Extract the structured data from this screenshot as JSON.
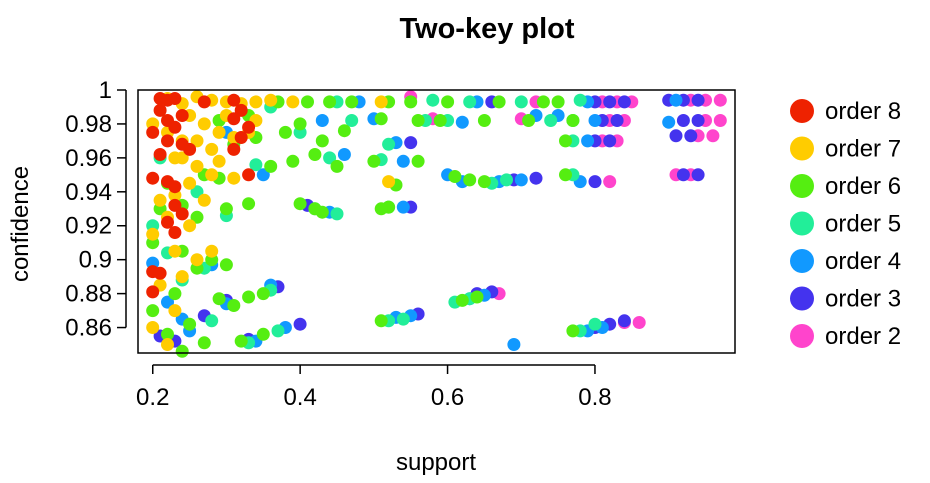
{
  "chart_data": {
    "type": "scatter",
    "title": "Two-key plot",
    "xlabel": "support",
    "ylabel": "confidence",
    "xlim": [
      0.18,
      0.99
    ],
    "ylim": [
      0.845,
      1.0
    ],
    "x_ticks": [
      {
        "value": 0.2,
        "label": "0.2"
      },
      {
        "value": 0.4,
        "label": "0.4"
      },
      {
        "value": 0.6,
        "label": "0.6"
      },
      {
        "value": 0.8,
        "label": "0.8"
      }
    ],
    "y_ticks": [
      {
        "value": 0.86,
        "label": "0.86"
      },
      {
        "value": 0.88,
        "label": "0.88"
      },
      {
        "value": 0.9,
        "label": "0.9"
      },
      {
        "value": 0.92,
        "label": "0.92"
      },
      {
        "value": 0.94,
        "label": "0.94"
      },
      {
        "value": 0.96,
        "label": "0.96"
      },
      {
        "value": 0.98,
        "label": "0.98"
      },
      {
        "value": 1.0,
        "label": "1"
      }
    ],
    "grid": false,
    "legend_position": "right",
    "series": [
      {
        "name": "order 2",
        "color": "#ff44cc",
        "points": [
          [
            0.97,
            0.994
          ],
          [
            0.95,
            0.994
          ],
          [
            0.93,
            0.994
          ],
          [
            0.97,
            0.982
          ],
          [
            0.95,
            0.982
          ],
          [
            0.96,
            0.973
          ],
          [
            0.94,
            0.973
          ],
          [
            0.93,
            0.95
          ],
          [
            0.91,
            0.95
          ],
          [
            0.85,
            0.993
          ],
          [
            0.83,
            0.993
          ],
          [
            0.81,
            0.993
          ],
          [
            0.84,
            0.982
          ],
          [
            0.82,
            0.982
          ],
          [
            0.83,
            0.97
          ],
          [
            0.81,
            0.97
          ],
          [
            0.82,
            0.946
          ],
          [
            0.86,
            0.863
          ],
          [
            0.84,
            0.863
          ],
          [
            0.67,
            0.88
          ],
          [
            0.7,
            0.983
          ],
          [
            0.72,
            0.993
          ],
          [
            0.55,
            0.996
          ],
          [
            0.58,
            0.983
          ]
        ]
      },
      {
        "name": "order 3",
        "color": "#4433ee",
        "points": [
          [
            0.94,
            0.994
          ],
          [
            0.92,
            0.994
          ],
          [
            0.9,
            0.994
          ],
          [
            0.94,
            0.982
          ],
          [
            0.92,
            0.982
          ],
          [
            0.93,
            0.973
          ],
          [
            0.91,
            0.973
          ],
          [
            0.94,
            0.95
          ],
          [
            0.92,
            0.95
          ],
          [
            0.84,
            0.993
          ],
          [
            0.82,
            0.993
          ],
          [
            0.8,
            0.993
          ],
          [
            0.83,
            0.982
          ],
          [
            0.81,
            0.982
          ],
          [
            0.82,
            0.97
          ],
          [
            0.8,
            0.97
          ],
          [
            0.8,
            0.946
          ],
          [
            0.84,
            0.864
          ],
          [
            0.82,
            0.862
          ],
          [
            0.8,
            0.86
          ],
          [
            0.69,
            0.947
          ],
          [
            0.72,
            0.948
          ],
          [
            0.66,
            0.881
          ],
          [
            0.64,
            0.88
          ],
          [
            0.66,
            0.993
          ],
          [
            0.55,
            0.969
          ],
          [
            0.37,
            0.884
          ],
          [
            0.33,
            0.853
          ],
          [
            0.4,
            0.862
          ],
          [
            0.27,
            0.867
          ],
          [
            0.41,
            0.932
          ],
          [
            0.21,
            0.855
          ],
          [
            0.23,
            0.852
          ],
          [
            0.3,
            0.876
          ],
          [
            0.56,
            0.868
          ],
          [
            0.55,
            0.931
          ]
        ]
      },
      {
        "name": "order 4",
        "color": "#1199ff",
        "points": [
          [
            0.69,
            0.85
          ],
          [
            0.91,
            0.994
          ],
          [
            0.9,
            0.981
          ],
          [
            0.79,
            0.993
          ],
          [
            0.8,
            0.982
          ],
          [
            0.79,
            0.97
          ],
          [
            0.78,
            0.946
          ],
          [
            0.81,
            0.86
          ],
          [
            0.79,
            0.858
          ],
          [
            0.65,
            0.879
          ],
          [
            0.63,
            0.877
          ],
          [
            0.7,
            0.947
          ],
          [
            0.67,
            0.946
          ],
          [
            0.64,
            0.993
          ],
          [
            0.62,
            0.981
          ],
          [
            0.53,
            0.866
          ],
          [
            0.55,
            0.867
          ],
          [
            0.54,
            0.931
          ],
          [
            0.53,
            0.969
          ],
          [
            0.54,
            0.958
          ],
          [
            0.2,
            0.898
          ],
          [
            0.24,
            0.865
          ],
          [
            0.3,
            0.874
          ],
          [
            0.36,
            0.885
          ],
          [
            0.34,
            0.852
          ],
          [
            0.38,
            0.86
          ],
          [
            0.44,
            0.928
          ],
          [
            0.48,
            0.993
          ],
          [
            0.5,
            0.983
          ],
          [
            0.46,
            0.962
          ],
          [
            0.28,
            0.897
          ],
          [
            0.22,
            0.875
          ],
          [
            0.25,
            0.858
          ],
          [
            0.43,
            0.982
          ],
          [
            0.35,
            0.95
          ],
          [
            0.3,
            0.975
          ],
          [
            0.6,
            0.95
          ],
          [
            0.62,
            0.946
          ],
          [
            0.75,
            0.985
          ],
          [
            0.72,
            0.985
          ]
        ]
      },
      {
        "name": "order 5",
        "color": "#22ee99",
        "points": [
          [
            0.78,
            0.994
          ],
          [
            0.77,
            0.982
          ],
          [
            0.77,
            0.97
          ],
          [
            0.77,
            0.95
          ],
          [
            0.78,
            0.858
          ],
          [
            0.8,
            0.862
          ],
          [
            0.63,
            0.877
          ],
          [
            0.61,
            0.875
          ],
          [
            0.68,
            0.947
          ],
          [
            0.66,
            0.945
          ],
          [
            0.63,
            0.993
          ],
          [
            0.6,
            0.982
          ],
          [
            0.52,
            0.864
          ],
          [
            0.54,
            0.865
          ],
          [
            0.52,
            0.931
          ],
          [
            0.51,
            0.959
          ],
          [
            0.52,
            0.968
          ],
          [
            0.45,
            0.927
          ],
          [
            0.42,
            0.93
          ],
          [
            0.36,
            0.882
          ],
          [
            0.33,
            0.851
          ],
          [
            0.37,
            0.858
          ],
          [
            0.27,
            0.895
          ],
          [
            0.24,
            0.888
          ],
          [
            0.28,
            0.864
          ],
          [
            0.2,
            0.92
          ],
          [
            0.22,
            0.904
          ],
          [
            0.21,
            0.96
          ],
          [
            0.45,
            0.993
          ],
          [
            0.47,
            0.982
          ],
          [
            0.44,
            0.96
          ],
          [
            0.3,
            0.926
          ],
          [
            0.34,
            0.956
          ],
          [
            0.26,
            0.94
          ],
          [
            0.7,
            0.993
          ],
          [
            0.74,
            0.982
          ],
          [
            0.58,
            0.994
          ],
          [
            0.57,
            0.982
          ],
          [
            0.4,
            0.975
          ],
          [
            0.36,
            0.99
          ]
        ]
      },
      {
        "name": "order 6",
        "color": "#55ee11",
        "points": [
          [
            0.77,
            0.982
          ],
          [
            0.76,
            0.97
          ],
          [
            0.76,
            0.95
          ],
          [
            0.77,
            0.858
          ],
          [
            0.62,
            0.876
          ],
          [
            0.64,
            0.878
          ],
          [
            0.65,
            0.946
          ],
          [
            0.63,
            0.947
          ],
          [
            0.61,
            0.949
          ],
          [
            0.6,
            0.993
          ],
          [
            0.59,
            0.982
          ],
          [
            0.52,
            0.931
          ],
          [
            0.51,
            0.93
          ],
          [
            0.5,
            0.958
          ],
          [
            0.51,
            0.864
          ],
          [
            0.51,
            0.983
          ],
          [
            0.52,
            0.993
          ],
          [
            0.55,
            0.993
          ],
          [
            0.56,
            0.982
          ],
          [
            0.42,
            0.93
          ],
          [
            0.4,
            0.933
          ],
          [
            0.43,
            0.928
          ],
          [
            0.35,
            0.88
          ],
          [
            0.33,
            0.878
          ],
          [
            0.31,
            0.873
          ],
          [
            0.32,
            0.852
          ],
          [
            0.35,
            0.856
          ],
          [
            0.26,
            0.895
          ],
          [
            0.28,
            0.9
          ],
          [
            0.23,
            0.88
          ],
          [
            0.25,
            0.862
          ],
          [
            0.27,
            0.851
          ],
          [
            0.22,
            0.856
          ],
          [
            0.2,
            0.87
          ],
          [
            0.21,
            0.93
          ],
          [
            0.2,
            0.91
          ],
          [
            0.24,
            0.932
          ],
          [
            0.22,
            0.945
          ],
          [
            0.27,
            0.95
          ],
          [
            0.29,
            0.948
          ],
          [
            0.26,
            0.925
          ],
          [
            0.3,
            0.93
          ],
          [
            0.33,
            0.933
          ],
          [
            0.36,
            0.955
          ],
          [
            0.39,
            0.958
          ],
          [
            0.42,
            0.962
          ],
          [
            0.45,
            0.955
          ],
          [
            0.43,
            0.97
          ],
          [
            0.38,
            0.975
          ],
          [
            0.34,
            0.972
          ],
          [
            0.31,
            0.968
          ],
          [
            0.29,
            0.982
          ],
          [
            0.33,
            0.985
          ],
          [
            0.37,
            0.993
          ],
          [
            0.41,
            0.993
          ],
          [
            0.44,
            0.993
          ],
          [
            0.47,
            0.993
          ],
          [
            0.46,
            0.976
          ],
          [
            0.4,
            0.98
          ],
          [
            0.67,
            0.993
          ],
          [
            0.73,
            0.993
          ],
          [
            0.71,
            0.982
          ],
          [
            0.65,
            0.982
          ],
          [
            0.75,
            0.993
          ],
          [
            0.56,
            0.958
          ],
          [
            0.53,
            0.944
          ],
          [
            0.3,
            0.897
          ],
          [
            0.24,
            0.905
          ],
          [
            0.29,
            0.877
          ],
          [
            0.24,
            0.846
          ]
        ]
      },
      {
        "name": "order 7",
        "color": "#ffcc00",
        "points": [
          [
            0.26,
            0.996
          ],
          [
            0.28,
            0.994
          ],
          [
            0.3,
            0.993
          ],
          [
            0.32,
            0.992
          ],
          [
            0.34,
            0.993
          ],
          [
            0.36,
            0.994
          ],
          [
            0.39,
            0.993
          ],
          [
            0.25,
            0.985
          ],
          [
            0.27,
            0.98
          ],
          [
            0.29,
            0.975
          ],
          [
            0.31,
            0.972
          ],
          [
            0.26,
            0.97
          ],
          [
            0.28,
            0.965
          ],
          [
            0.24,
            0.96
          ],
          [
            0.26,
            0.955
          ],
          [
            0.28,
            0.95
          ],
          [
            0.25,
            0.945
          ],
          [
            0.23,
            0.938
          ],
          [
            0.21,
            0.935
          ],
          [
            0.22,
            0.925
          ],
          [
            0.2,
            0.915
          ],
          [
            0.23,
            0.905
          ],
          [
            0.26,
            0.9
          ],
          [
            0.28,
            0.905
          ],
          [
            0.24,
            0.89
          ],
          [
            0.21,
            0.885
          ],
          [
            0.23,
            0.87
          ],
          [
            0.2,
            0.86
          ],
          [
            0.22,
            0.85
          ],
          [
            0.33,
            0.975
          ],
          [
            0.3,
            0.985
          ],
          [
            0.34,
            0.982
          ],
          [
            0.22,
            0.995
          ],
          [
            0.24,
            0.992
          ],
          [
            0.2,
            0.98
          ],
          [
            0.22,
            0.975
          ],
          [
            0.24,
            0.97
          ],
          [
            0.23,
            0.96
          ],
          [
            0.29,
            0.958
          ],
          [
            0.31,
            0.948
          ],
          [
            0.51,
            0.993
          ],
          [
            0.52,
            0.946
          ],
          [
            0.27,
            0.935
          ],
          [
            0.25,
            0.92
          ]
        ]
      },
      {
        "name": "order 8",
        "color": "#ee2200",
        "points": [
          [
            0.21,
            0.995
          ],
          [
            0.22,
            0.994
          ],
          [
            0.23,
            0.995
          ],
          [
            0.21,
            0.988
          ],
          [
            0.22,
            0.982
          ],
          [
            0.23,
            0.978
          ],
          [
            0.2,
            0.975
          ],
          [
            0.22,
            0.97
          ],
          [
            0.24,
            0.968
          ],
          [
            0.21,
            0.962
          ],
          [
            0.2,
            0.948
          ],
          [
            0.22,
            0.946
          ],
          [
            0.23,
            0.943
          ],
          [
            0.23,
            0.932
          ],
          [
            0.24,
            0.927
          ],
          [
            0.22,
            0.922
          ],
          [
            0.23,
            0.916
          ],
          [
            0.2,
            0.893
          ],
          [
            0.21,
            0.892
          ],
          [
            0.2,
            0.881
          ],
          [
            0.31,
            0.994
          ],
          [
            0.32,
            0.988
          ],
          [
            0.31,
            0.983
          ],
          [
            0.33,
            0.978
          ],
          [
            0.32,
            0.972
          ],
          [
            0.31,
            0.965
          ],
          [
            0.33,
            0.95
          ],
          [
            0.27,
            0.993
          ],
          [
            0.25,
            0.965
          ],
          [
            0.24,
            0.985
          ]
        ]
      }
    ]
  }
}
